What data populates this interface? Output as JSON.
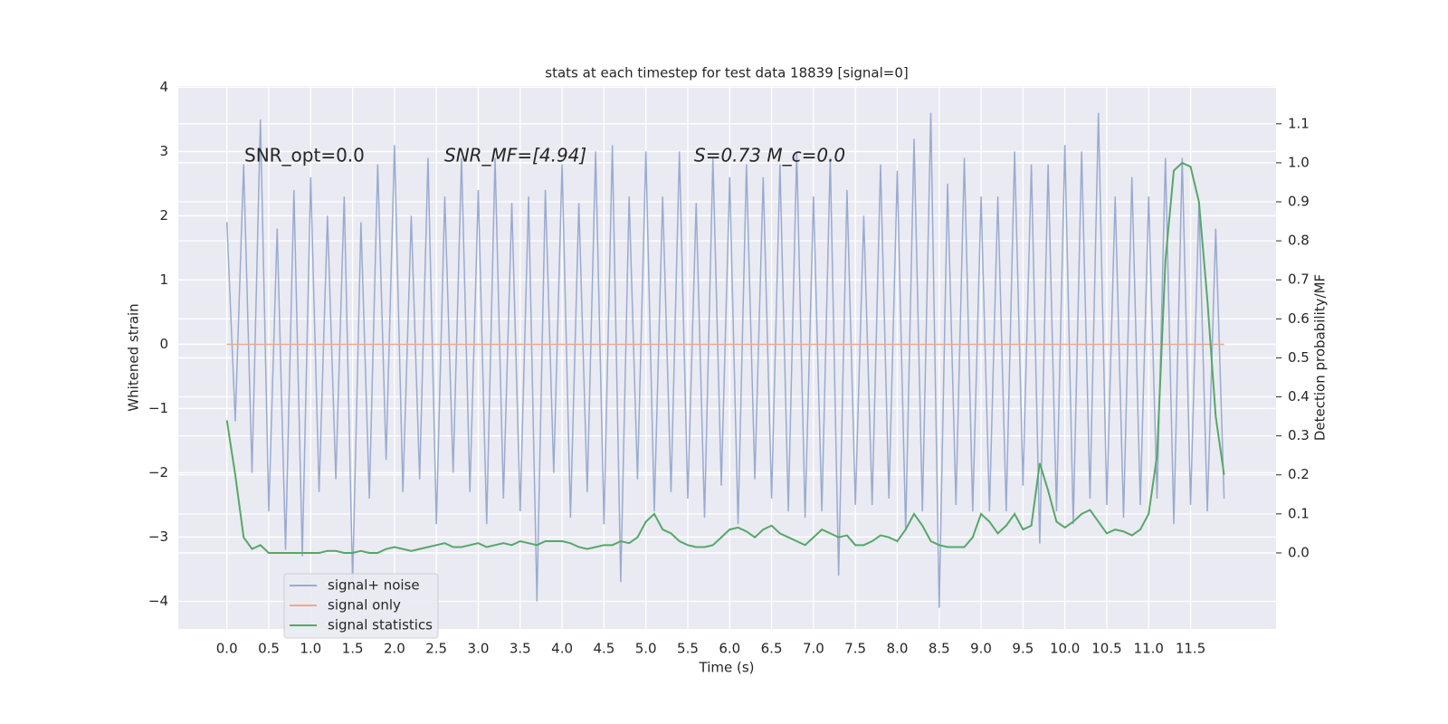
{
  "chart_data": {
    "type": "line",
    "title": "stats at each timestep for test data 18839 [signal=0]",
    "xlabel": "Time (s)",
    "ylabel": "Whitened strain",
    "y2label": "Detection probability/MF",
    "annotations": [
      "SNR_opt=0.0",
      "SNR_MF=[4.94]",
      "S=0.73   M_c=0.0"
    ],
    "grid": true,
    "legend": "lower left",
    "x": [
      0.0,
      0.1,
      0.2,
      0.3,
      0.4,
      0.5,
      0.6,
      0.7,
      0.8,
      0.9,
      1.0,
      1.1,
      1.2,
      1.3,
      1.4,
      1.5,
      1.6,
      1.7,
      1.8,
      1.9,
      2.0,
      2.1,
      2.2,
      2.3,
      2.4,
      2.5,
      2.6,
      2.7,
      2.8,
      2.9,
      3.0,
      3.1,
      3.2,
      3.3,
      3.4,
      3.5,
      3.6,
      3.7,
      3.8,
      3.9,
      4.0,
      4.1,
      4.2,
      4.3,
      4.4,
      4.5,
      4.6,
      4.7,
      4.8,
      4.9,
      5.0,
      5.1,
      5.2,
      5.3,
      5.4,
      5.5,
      5.6,
      5.7,
      5.8,
      5.9,
      6.0,
      6.1,
      6.2,
      6.3,
      6.4,
      6.5,
      6.6,
      6.7,
      6.8,
      6.9,
      7.0,
      7.1,
      7.2,
      7.3,
      7.4,
      7.5,
      7.6,
      7.7,
      7.8,
      7.9,
      8.0,
      8.1,
      8.2,
      8.3,
      8.4,
      8.5,
      8.6,
      8.7,
      8.8,
      8.9,
      9.0,
      9.1,
      9.2,
      9.3,
      9.4,
      9.5,
      9.6,
      9.7,
      9.8,
      9.9,
      10.0,
      10.1,
      10.2,
      10.3,
      10.4,
      10.5,
      10.6,
      10.7,
      10.8,
      10.9,
      11.0,
      11.1,
      11.2,
      11.3,
      11.4,
      11.5,
      11.6,
      11.7,
      11.8,
      11.9
    ],
    "series": [
      {
        "name": "signal+ noise",
        "color": "#9aabd0",
        "values": [
          1.9,
          -1.2,
          2.8,
          -2.0,
          3.5,
          -2.6,
          1.8,
          -3.2,
          2.4,
          -3.3,
          2.6,
          -2.3,
          2.0,
          -2.1,
          2.3,
          -3.7,
          1.9,
          -2.4,
          2.8,
          -1.8,
          3.1,
          -2.3,
          2.0,
          -2.1,
          2.9,
          -2.8,
          2.3,
          -2.0,
          2.9,
          -2.3,
          2.4,
          -2.8,
          2.9,
          -2.4,
          2.2,
          -2.6,
          2.3,
          -4.0,
          2.4,
          -2.0,
          2.8,
          -2.7,
          2.2,
          -2.3,
          3.0,
          -2.8,
          3.1,
          -3.7,
          2.3,
          -2.1,
          3.0,
          -2.6,
          2.3,
          -2.3,
          3.0,
          -2.4,
          2.2,
          -2.7,
          2.9,
          -2.2,
          2.6,
          -2.8,
          2.8,
          -2.1,
          2.6,
          -2.4,
          2.8,
          -2.6,
          3.0,
          -2.7,
          2.3,
          -2.6,
          2.9,
          -3.6,
          2.4,
          -2.5,
          2.0,
          -2.5,
          2.8,
          -2.4,
          2.7,
          -2.9,
          3.2,
          -2.6,
          3.6,
          -4.1,
          2.5,
          -2.5,
          2.9,
          -2.6,
          2.3,
          -2.6,
          2.3,
          -2.6,
          3.0,
          -2.2,
          2.8,
          -3.1,
          2.8,
          -2.6,
          3.1,
          -2.8,
          3.0,
          -2.4,
          3.6,
          -2.5,
          2.3,
          -2.7,
          2.6,
          -2.5,
          2.3,
          -2.4,
          2.9,
          -2.8,
          2.9,
          -2.5,
          2.2,
          -2.6,
          1.8,
          -2.4
        ]
      },
      {
        "name": "signal only",
        "color": "#e8ab92",
        "values": [
          0,
          0,
          0,
          0,
          0,
          0,
          0,
          0,
          0,
          0,
          0,
          0,
          0,
          0,
          0,
          0,
          0,
          0,
          0,
          0,
          0,
          0,
          0,
          0,
          0,
          0,
          0,
          0,
          0,
          0,
          0,
          0,
          0,
          0,
          0,
          0,
          0,
          0,
          0,
          0,
          0,
          0,
          0,
          0,
          0,
          0,
          0,
          0,
          0,
          0,
          0,
          0,
          0,
          0,
          0,
          0,
          0,
          0,
          0,
          0,
          0,
          0,
          0,
          0,
          0,
          0,
          0,
          0,
          0,
          0,
          0,
          0,
          0,
          0,
          0,
          0,
          0,
          0,
          0,
          0,
          0,
          0,
          0,
          0,
          0,
          0,
          0,
          0,
          0,
          0,
          0,
          0,
          0,
          0,
          0,
          0,
          0,
          0,
          0,
          0,
          0,
          0,
          0,
          0,
          0,
          0,
          0,
          0,
          0,
          0,
          0,
          0,
          0,
          0,
          0,
          0,
          0,
          0,
          0,
          0
        ]
      },
      {
        "name": "signal statistics",
        "color": "#55a868",
        "axis": "y2",
        "values": [
          0.34,
          0.2,
          0.04,
          0.01,
          0.02,
          0.0,
          0.0,
          0.0,
          0.0,
          0.0,
          0.0,
          0.0,
          0.005,
          0.005,
          0.0,
          0.0,
          0.005,
          0.0,
          0.0,
          0.01,
          0.015,
          0.01,
          0.005,
          0.01,
          0.015,
          0.02,
          0.025,
          0.015,
          0.015,
          0.02,
          0.025,
          0.015,
          0.02,
          0.025,
          0.02,
          0.03,
          0.025,
          0.02,
          0.03,
          0.03,
          0.03,
          0.025,
          0.015,
          0.01,
          0.015,
          0.02,
          0.02,
          0.03,
          0.025,
          0.04,
          0.08,
          0.1,
          0.06,
          0.05,
          0.03,
          0.02,
          0.015,
          0.015,
          0.02,
          0.04,
          0.06,
          0.065,
          0.055,
          0.04,
          0.06,
          0.07,
          0.05,
          0.04,
          0.03,
          0.02,
          0.04,
          0.06,
          0.05,
          0.04,
          0.045,
          0.02,
          0.02,
          0.03,
          0.045,
          0.04,
          0.03,
          0.06,
          0.1,
          0.07,
          0.03,
          0.02,
          0.015,
          0.015,
          0.015,
          0.04,
          0.1,
          0.08,
          0.05,
          0.07,
          0.1,
          0.06,
          0.07,
          0.23,
          0.16,
          0.08,
          0.065,
          0.08,
          0.1,
          0.11,
          0.08,
          0.05,
          0.06,
          0.055,
          0.045,
          0.06,
          0.1,
          0.25,
          0.75,
          0.98,
          1.0,
          0.99,
          0.9,
          0.65,
          0.35,
          0.2
        ]
      }
    ],
    "xlim": [
      -0.58,
      12.52
    ],
    "xticks": [
      {
        "value": 0,
        "label": "0.0"
      },
      {
        "value": 0.5,
        "label": "0.5"
      },
      {
        "value": 1,
        "label": "1.0"
      },
      {
        "value": 1.5,
        "label": "1.5"
      },
      {
        "value": 2,
        "label": "2.0"
      },
      {
        "value": 2.5,
        "label": "2.5"
      },
      {
        "value": 3,
        "label": "3.0"
      },
      {
        "value": 3.5,
        "label": "3.5"
      },
      {
        "value": 4,
        "label": "4.0"
      },
      {
        "value": 4.5,
        "label": "4.5"
      },
      {
        "value": 5,
        "label": "5.0"
      },
      {
        "value": 5.5,
        "label": "5.5"
      },
      {
        "value": 6,
        "label": "6.0"
      },
      {
        "value": 6.5,
        "label": "6.5"
      },
      {
        "value": 7,
        "label": "7.0"
      },
      {
        "value": 7.5,
        "label": "7.5"
      },
      {
        "value": 8,
        "label": "8.0"
      },
      {
        "value": 8.5,
        "label": "8.5"
      },
      {
        "value": 9,
        "label": "9.0"
      },
      {
        "value": 9.5,
        "label": "9.5"
      },
      {
        "value": 10,
        "label": "10.0"
      },
      {
        "value": 10.5,
        "label": "10.5"
      },
      {
        "value": 11,
        "label": "11.0"
      },
      {
        "value": 11.5,
        "label": "11.5"
      }
    ],
    "ylim": [
      -4.43,
      4.02
    ],
    "yticks": [
      {
        "value": -4,
        "label": "−4"
      },
      {
        "value": -3,
        "label": "−3"
      },
      {
        "value": -2,
        "label": "−2"
      },
      {
        "value": -1,
        "label": "−1"
      },
      0,
      1,
      2,
      3,
      4
    ],
    "y2lim": [
      -0.195,
      1.197
    ],
    "y2ticks": [
      {
        "value": 0,
        "label": "0.0"
      },
      {
        "value": 0.1,
        "label": "0.1"
      },
      {
        "value": 0.2,
        "label": "0.2"
      },
      {
        "value": 0.3,
        "label": "0.3"
      },
      {
        "value": 0.4,
        "label": "0.4"
      },
      {
        "value": 0.5,
        "label": "0.5"
      },
      {
        "value": 0.6,
        "label": "0.6"
      },
      {
        "value": 0.7,
        "label": "0.7"
      },
      {
        "value": 0.8,
        "label": "0.8"
      },
      {
        "value": 0.9,
        "label": "0.9"
      },
      {
        "value": 1,
        "label": "1.0"
      },
      {
        "value": 1.1,
        "label": "1.1"
      }
    ]
  }
}
